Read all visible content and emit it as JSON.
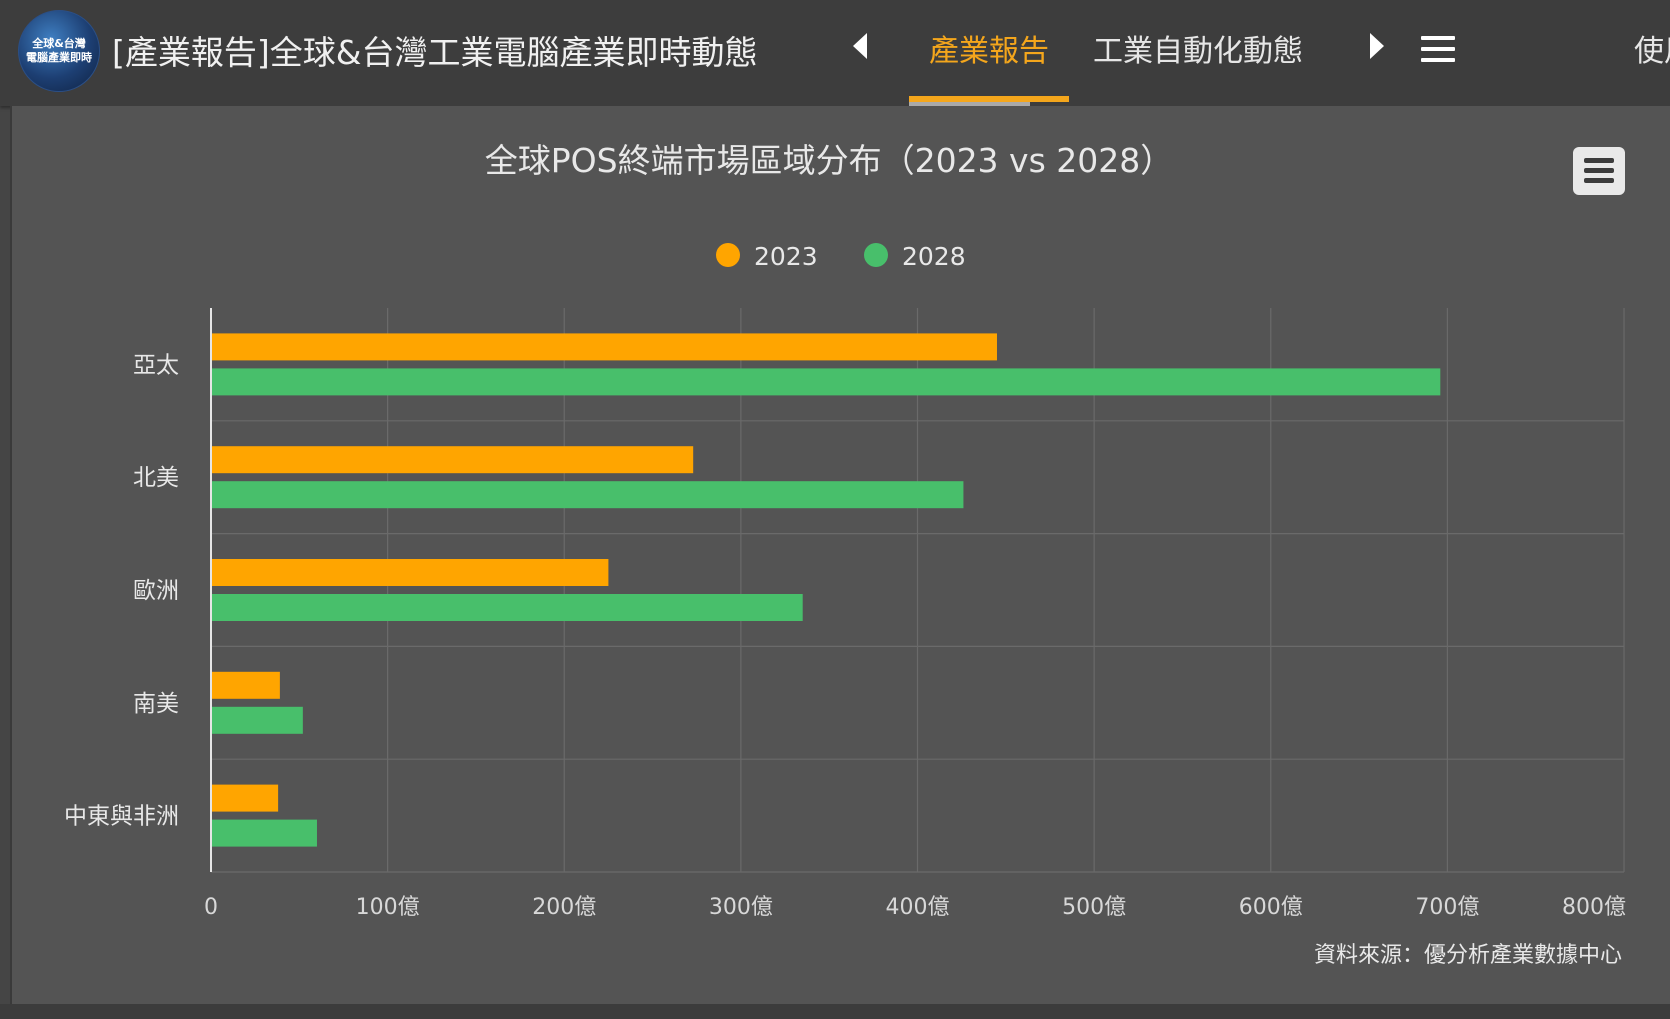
{
  "header": {
    "logo_lines": [
      "全球&台灣",
      "電腦產業即時"
    ],
    "title": "[產業報告]全球&台灣工業電腦產業即時動態",
    "tabs": [
      {
        "label": "產業報告",
        "active": true
      },
      {
        "label": "工業自動化動態",
        "active": false
      }
    ],
    "cut_tab": "使用",
    "icons": {
      "prev": "caret-left-icon",
      "next": "caret-right-icon",
      "menu": "hamburger-menu-icon"
    }
  },
  "chart_data": {
    "type": "bar",
    "orientation": "horizontal",
    "title": "全球POS終端市場區域分布（2023 vs 2028）",
    "categories": [
      "亞太",
      "北美",
      "歐洲",
      "南美",
      "中東與非洲"
    ],
    "series": [
      {
        "name": "2023",
        "color": "#ffa500",
        "values": [
          445,
          273,
          225,
          39,
          38
        ]
      },
      {
        "name": "2028",
        "color": "#48bf6b",
        "values": [
          696,
          426,
          335,
          52,
          60
        ]
      }
    ],
    "x_ticks": [
      "0",
      "100億",
      "200億",
      "300億",
      "400億",
      "500億",
      "600億",
      "700億",
      "800億"
    ],
    "xlim": [
      0,
      800
    ],
    "grid": true,
    "legend_position": "top-center",
    "credit": "資料來源：優分析產業數據中心",
    "menu_icon": "export-menu-icon"
  }
}
